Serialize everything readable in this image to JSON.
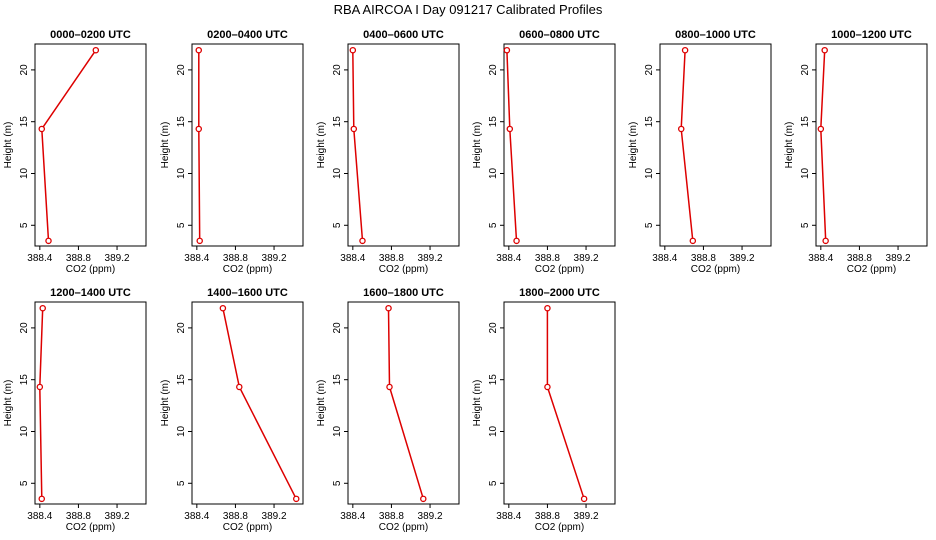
{
  "figure_title": "RBA AIRCOA I  Day 091217  Calibrated Profiles",
  "colors": {
    "series": "#dd0000",
    "axis": "#000000",
    "background": "#ffffff"
  },
  "chart_data": [
    {
      "type": "line",
      "title": "0000–0200 UTC",
      "xlabel": "CO2 (ppm)",
      "ylabel": "Height (m)",
      "xlim": [
        388.35,
        389.5
      ],
      "ylim": [
        3,
        22.5
      ],
      "xticks": [
        388.4,
        388.8,
        389.2
      ],
      "yticks": [
        5,
        10,
        15,
        20
      ],
      "series": [
        {
          "x": [
            388.49,
            388.42,
            388.98
          ],
          "y": [
            3.5,
            14.3,
            21.9
          ]
        }
      ]
    },
    {
      "type": "line",
      "title": "0200–0400 UTC",
      "xlabel": "CO2 (ppm)",
      "ylabel": "Height (m)",
      "xlim": [
        388.35,
        389.5
      ],
      "ylim": [
        3,
        22.5
      ],
      "xticks": [
        388.4,
        388.8,
        389.2
      ],
      "yticks": [
        5,
        10,
        15,
        20
      ],
      "series": [
        {
          "x": [
            388.43,
            388.42,
            388.42
          ],
          "y": [
            3.5,
            14.3,
            21.9
          ]
        }
      ]
    },
    {
      "type": "line",
      "title": "0400–0600 UTC",
      "xlabel": "CO2 (ppm)",
      "ylabel": "Height (m)",
      "xlim": [
        388.35,
        389.5
      ],
      "ylim": [
        3,
        22.5
      ],
      "xticks": [
        388.4,
        388.8,
        389.2
      ],
      "yticks": [
        5,
        10,
        15,
        20
      ],
      "series": [
        {
          "x": [
            388.5,
            388.41,
            388.4
          ],
          "y": [
            3.5,
            14.3,
            21.9
          ]
        }
      ]
    },
    {
      "type": "line",
      "title": "0600–0800 UTC",
      "xlabel": "CO2 (ppm)",
      "ylabel": "Height (m)",
      "xlim": [
        388.35,
        389.5
      ],
      "ylim": [
        3,
        22.5
      ],
      "xticks": [
        388.4,
        388.8,
        389.2
      ],
      "yticks": [
        5,
        10,
        15,
        20
      ],
      "series": [
        {
          "x": [
            388.48,
            388.41,
            388.38
          ],
          "y": [
            3.5,
            14.3,
            21.9
          ]
        }
      ]
    },
    {
      "type": "line",
      "title": "0800–1000 UTC",
      "xlabel": "CO2 (ppm)",
      "ylabel": "Height (m)",
      "xlim": [
        388.35,
        389.5
      ],
      "ylim": [
        3,
        22.5
      ],
      "xticks": [
        388.4,
        388.8,
        389.2
      ],
      "yticks": [
        5,
        10,
        15,
        20
      ],
      "series": [
        {
          "x": [
            388.69,
            388.57,
            388.61
          ],
          "y": [
            3.5,
            14.3,
            21.9
          ]
        }
      ]
    },
    {
      "type": "line",
      "title": "1000–1200 UTC",
      "xlabel": "CO2 (ppm)",
      "ylabel": "Height (m)",
      "xlim": [
        388.35,
        389.5
      ],
      "ylim": [
        3,
        22.5
      ],
      "xticks": [
        388.4,
        388.8,
        389.2
      ],
      "yticks": [
        5,
        10,
        15,
        20
      ],
      "series": [
        {
          "x": [
            388.45,
            388.4,
            388.44
          ],
          "y": [
            3.5,
            14.3,
            21.9
          ]
        }
      ]
    },
    {
      "type": "line",
      "title": "1200–1400 UTC",
      "xlabel": "CO2 (ppm)",
      "ylabel": "Height (m)",
      "xlim": [
        388.35,
        389.5
      ],
      "ylim": [
        3,
        22.5
      ],
      "xticks": [
        388.4,
        388.8,
        389.2
      ],
      "yticks": [
        5,
        10,
        15,
        20
      ],
      "series": [
        {
          "x": [
            388.42,
            388.4,
            388.43
          ],
          "y": [
            3.5,
            14.3,
            21.9
          ]
        }
      ]
    },
    {
      "type": "line",
      "title": "1400–1600 UTC",
      "xlabel": "CO2 (ppm)",
      "ylabel": "Height (m)",
      "xlim": [
        388.35,
        389.5
      ],
      "ylim": [
        3,
        22.5
      ],
      "xticks": [
        388.4,
        388.8,
        389.2
      ],
      "yticks": [
        5,
        10,
        15,
        20
      ],
      "series": [
        {
          "x": [
            389.43,
            388.84,
            388.67
          ],
          "y": [
            3.5,
            14.3,
            21.9
          ]
        }
      ]
    },
    {
      "type": "line",
      "title": "1600–1800 UTC",
      "xlabel": "CO2 (ppm)",
      "ylabel": "Height (m)",
      "xlim": [
        388.35,
        389.5
      ],
      "ylim": [
        3,
        22.5
      ],
      "xticks": [
        388.4,
        388.8,
        389.2
      ],
      "yticks": [
        5,
        10,
        15,
        20
      ],
      "series": [
        {
          "x": [
            389.13,
            388.78,
            388.77
          ],
          "y": [
            3.5,
            14.3,
            21.9
          ]
        }
      ]
    },
    {
      "type": "line",
      "title": "1800–2000 UTC",
      "xlabel": "CO2 (ppm)",
      "ylabel": "Height (m)",
      "xlim": [
        388.35,
        389.5
      ],
      "ylim": [
        3,
        22.5
      ],
      "xticks": [
        388.4,
        388.8,
        389.2
      ],
      "yticks": [
        5,
        10,
        15,
        20
      ],
      "series": [
        {
          "x": [
            389.18,
            388.8,
            388.8
          ],
          "y": [
            3.5,
            14.3,
            21.9
          ]
        }
      ]
    }
  ]
}
